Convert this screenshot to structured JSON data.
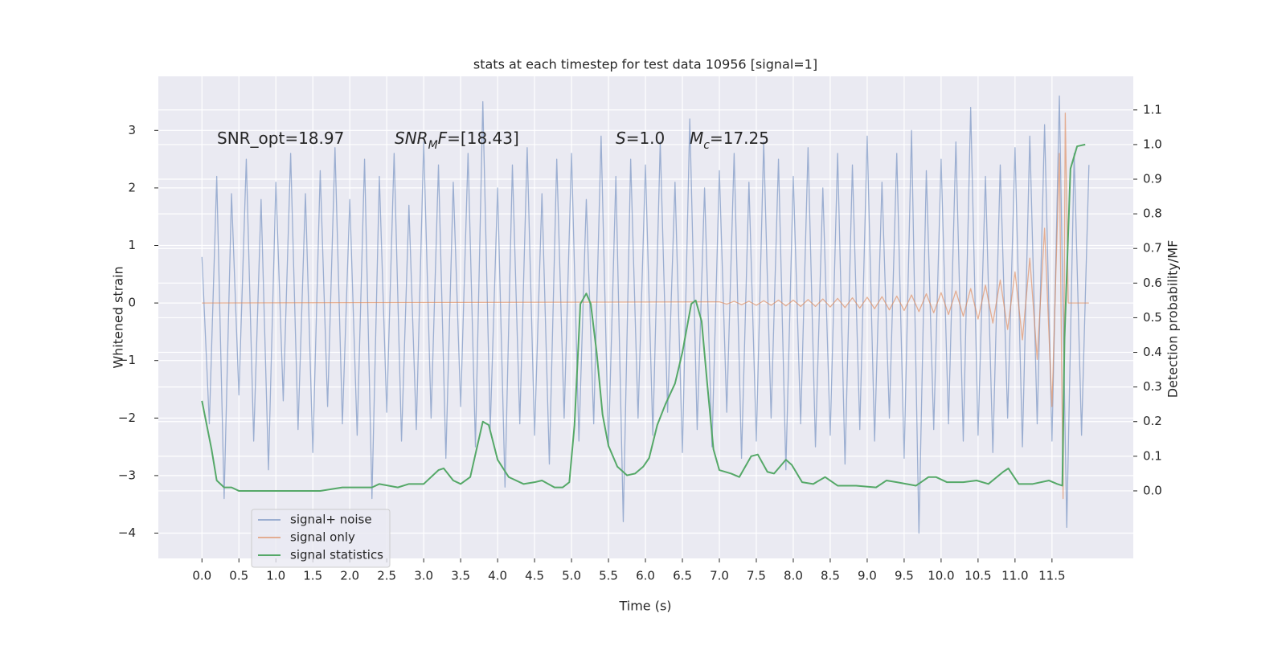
{
  "chart_data": {
    "type": "line",
    "title": "stats at each timestep for test data 10956 [signal=1]",
    "x_label": "Time (s)",
    "y_label": "Whitened strain",
    "y2_label": "Detection probability/MF",
    "xlim": [
      -0.59,
      12.6
    ],
    "ylim": [
      -4.44,
      3.94
    ],
    "y2lim": [
      -0.195,
      1.197
    ],
    "xticks": [
      {
        "value": 0,
        "label": "0.0"
      },
      0.5,
      {
        "value": 1,
        "label": "1.0"
      },
      1.5,
      {
        "value": 2,
        "label": "2.0"
      },
      2.5,
      {
        "value": 3,
        "label": "3.0"
      },
      3.5,
      {
        "value": 4,
        "label": "4.0"
      },
      4.5,
      {
        "value": 5,
        "label": "5.0"
      },
      5.5,
      {
        "value": 6,
        "label": "6.0"
      },
      6.5,
      {
        "value": 7,
        "label": "7.0"
      },
      7.5,
      {
        "value": 8,
        "label": "8.0"
      },
      8.5,
      {
        "value": 9,
        "label": "9.0"
      },
      9.5,
      {
        "value": 10,
        "label": "10.0"
      },
      10.5,
      {
        "value": 11,
        "label": "11.0"
      },
      11.5
    ],
    "yticks": [
      {
        "value": -4,
        "label": "−4"
      },
      {
        "value": -3,
        "label": "−3"
      },
      {
        "value": -2,
        "label": "−2"
      },
      {
        "value": -1,
        "label": "−1"
      },
      0,
      1,
      2,
      3
    ],
    "y2ticks": [
      {
        "value": 0,
        "label": "0.0"
      },
      0.1,
      0.2,
      0.3,
      0.4,
      0.5,
      0.6,
      0.7,
      0.8,
      0.9,
      {
        "value": 1,
        "label": "1.0"
      },
      1.1
    ],
    "grid": true,
    "legend": "lower left",
    "annotations": [
      {
        "parts": [
          {
            "text": "SNR_opt=18.97",
            "style": "normal"
          }
        ]
      },
      {
        "parts": [
          {
            "text": "SNR",
            "style": "italic"
          },
          {
            "text": "M",
            "style": "sub"
          },
          {
            "text": "F",
            "style": "italic"
          },
          {
            "text": "=[18.43]",
            "style": "normal"
          }
        ]
      },
      {
        "parts": [
          {
            "text": "S",
            "style": "italic"
          },
          {
            "text": "=1.0",
            "style": "normal"
          }
        ]
      },
      {
        "parts": [
          {
            "text": "M",
            "style": "italic"
          },
          {
            "text": "c",
            "style": "sub"
          },
          {
            "text": "=17.25",
            "style": "normal"
          }
        ]
      }
    ],
    "series": [
      {
        "name": "signal+ noise",
        "color": "#4c72b0",
        "opacity": 0.5,
        "axis": "y",
        "x": [
          0,
          0.1,
          0.2,
          0.3,
          0.4,
          0.5,
          0.6,
          0.7,
          0.8,
          0.9,
          1,
          1.1,
          1.2,
          1.3,
          1.4,
          1.5,
          1.6,
          1.7,
          1.8,
          1.9,
          2,
          2.1,
          2.2,
          2.3,
          2.4,
          2.5,
          2.6,
          2.7,
          2.8,
          2.9,
          3,
          3.1,
          3.2,
          3.3,
          3.4,
          3.5,
          3.6,
          3.7,
          3.8,
          3.9,
          4,
          4.1,
          4.2,
          4.3,
          4.4,
          4.5,
          4.6,
          4.7,
          4.8,
          4.9,
          5,
          5.1,
          5.2,
          5.3,
          5.4,
          5.5,
          5.6,
          5.7,
          5.8,
          5.9,
          6,
          6.1,
          6.2,
          6.3,
          6.4,
          6.5,
          6.6,
          6.7,
          6.8,
          6.9,
          7,
          7.1,
          7.2,
          7.3,
          7.4,
          7.5,
          7.6,
          7.7,
          7.8,
          7.9,
          8,
          8.1,
          8.2,
          8.3,
          8.4,
          8.5,
          8.6,
          8.7,
          8.8,
          8.9,
          9,
          9.1,
          9.2,
          9.3,
          9.4,
          9.5,
          9.6,
          9.7,
          9.8,
          9.9,
          10,
          10.1,
          10.2,
          10.3,
          10.4,
          10.5,
          10.6,
          10.7,
          10.8,
          10.9,
          11,
          11.1,
          11.2,
          11.3,
          11.4,
          11.5,
          11.6,
          11.7,
          11.8,
          11.9,
          12
        ],
        "values": [
          0.8,
          -2.1,
          2.2,
          -3.4,
          1.9,
          -1.6,
          2.5,
          -2.4,
          1.8,
          -2.9,
          2.1,
          -1.7,
          2.6,
          -2.2,
          1.9,
          -2.6,
          2.3,
          -1.8,
          2.7,
          -2.1,
          1.8,
          -2.3,
          2.5,
          -3.4,
          2.2,
          -1.9,
          2.6,
          -2.4,
          1.7,
          -2.2,
          2.8,
          -2.0,
          2.4,
          -2.7,
          2.1,
          -1.8,
          2.6,
          -2.5,
          3.5,
          -2.2,
          2.0,
          -3.2,
          2.4,
          -2.1,
          2.7,
          -2.3,
          1.9,
          -2.8,
          2.5,
          -2.0,
          2.6,
          -2.4,
          1.8,
          -2.1,
          2.9,
          -2.5,
          2.2,
          -3.8,
          2.5,
          -2.0,
          2.4,
          -2.3,
          2.8,
          -1.9,
          2.1,
          -2.6,
          3.2,
          -2.2,
          2.0,
          -2.5,
          2.3,
          -1.9,
          2.6,
          -2.7,
          2.1,
          -2.4,
          2.8,
          -2.0,
          2.5,
          -2.9,
          2.2,
          -2.1,
          2.7,
          -2.5,
          2.0,
          -2.3,
          2.6,
          -2.8,
          2.4,
          -2.2,
          2.9,
          -2.4,
          2.1,
          -2.0,
          2.6,
          -2.7,
          3.0,
          -4.0,
          2.3,
          -2.2,
          2.5,
          -2.1,
          2.8,
          -2.4,
          3.4,
          -2.3,
          2.2,
          -2.6,
          2.4,
          -2.0,
          2.7,
          -2.5,
          2.9,
          -2.1,
          3.1,
          -2.4,
          3.6,
          -3.9,
          2.6,
          -2.3,
          2.4
        ]
      },
      {
        "name": "signal only",
        "color": "#dd8452",
        "opacity": 0.6,
        "axis": "y",
        "x": [
          0,
          7,
          7.1,
          7.2,
          7.3,
          7.4,
          7.5,
          7.6,
          7.7,
          7.8,
          7.9,
          8,
          8.1,
          8.2,
          8.3,
          8.4,
          8.5,
          8.6,
          8.7,
          8.8,
          8.9,
          9,
          9.1,
          9.2,
          9.3,
          9.4,
          9.5,
          9.6,
          9.7,
          9.8,
          9.9,
          10,
          10.1,
          10.2,
          10.3,
          10.4,
          10.5,
          10.6,
          10.7,
          10.8,
          10.9,
          11,
          11.1,
          11.2,
          11.3,
          11.4,
          11.5,
          11.6,
          11.65,
          11.68,
          11.72,
          12
        ],
        "values": [
          0,
          0.02,
          -0.02,
          0.03,
          -0.03,
          0.03,
          -0.04,
          0.04,
          -0.04,
          0.05,
          -0.05,
          0.05,
          -0.06,
          0.06,
          -0.06,
          0.07,
          -0.07,
          0.08,
          -0.08,
          0.09,
          -0.09,
          0.1,
          -0.1,
          0.11,
          -0.12,
          0.12,
          -0.13,
          0.14,
          -0.15,
          0.16,
          -0.17,
          0.18,
          -0.2,
          0.21,
          -0.23,
          0.25,
          -0.28,
          0.31,
          -0.35,
          0.4,
          -0.46,
          0.54,
          -0.64,
          0.78,
          -0.98,
          1.3,
          -1.8,
          2.6,
          -3.4,
          3.3,
          0,
          0
        ]
      },
      {
        "name": "signal statistics",
        "color": "#55a868",
        "opacity": 1,
        "axis": "y2",
        "x": [
          0,
          0.13,
          0.2,
          0.3,
          0.4,
          0.5,
          1.1,
          1.6,
          1.9,
          2.3,
          2.4,
          2.65,
          2.8,
          3,
          3.2,
          3.27,
          3.4,
          3.5,
          3.63,
          3.8,
          3.88,
          4,
          4.15,
          4.35,
          4.5,
          4.6,
          4.77,
          4.88,
          4.97,
          5.04,
          5.12,
          5.2,
          5.26,
          5.34,
          5.42,
          5.5,
          5.62,
          5.75,
          5.86,
          5.97,
          6.05,
          6.16,
          6.27,
          6.4,
          6.5,
          6.62,
          6.68,
          6.76,
          6.84,
          6.92,
          7,
          7.16,
          7.27,
          7.43,
          7.52,
          7.65,
          7.74,
          7.9,
          7.98,
          8.12,
          8.27,
          8.43,
          8.6,
          8.85,
          9.12,
          9.26,
          9.4,
          9.66,
          9.83,
          9.93,
          10.08,
          10.3,
          10.48,
          10.64,
          10.84,
          10.91,
          11.05,
          11.24,
          11.46,
          11.57,
          11.64,
          11.67,
          11.75,
          11.84,
          11.95
        ],
        "values": [
          0.26,
          0.12,
          0.03,
          0.01,
          0.01,
          0,
          0,
          0,
          0.01,
          0.01,
          0.02,
          0.01,
          0.02,
          0.02,
          0.06,
          0.065,
          0.03,
          0.02,
          0.04,
          0.2,
          0.19,
          0.09,
          0.04,
          0.02,
          0.025,
          0.03,
          0.01,
          0.01,
          0.025,
          0.19,
          0.54,
          0.57,
          0.54,
          0.4,
          0.22,
          0.13,
          0.07,
          0.045,
          0.05,
          0.07,
          0.095,
          0.19,
          0.25,
          0.31,
          0.4,
          0.54,
          0.55,
          0.49,
          0.3,
          0.12,
          0.06,
          0.05,
          0.04,
          0.1,
          0.105,
          0.055,
          0.05,
          0.09,
          0.075,
          0.025,
          0.02,
          0.04,
          0.015,
          0.015,
          0.01,
          0.03,
          0.025,
          0.015,
          0.04,
          0.04,
          0.025,
          0.025,
          0.03,
          0.02,
          0.055,
          0.065,
          0.02,
          0.02,
          0.03,
          0.02,
          0.015,
          0.44,
          0.93,
          0.995,
          1
        ]
      }
    ]
  }
}
